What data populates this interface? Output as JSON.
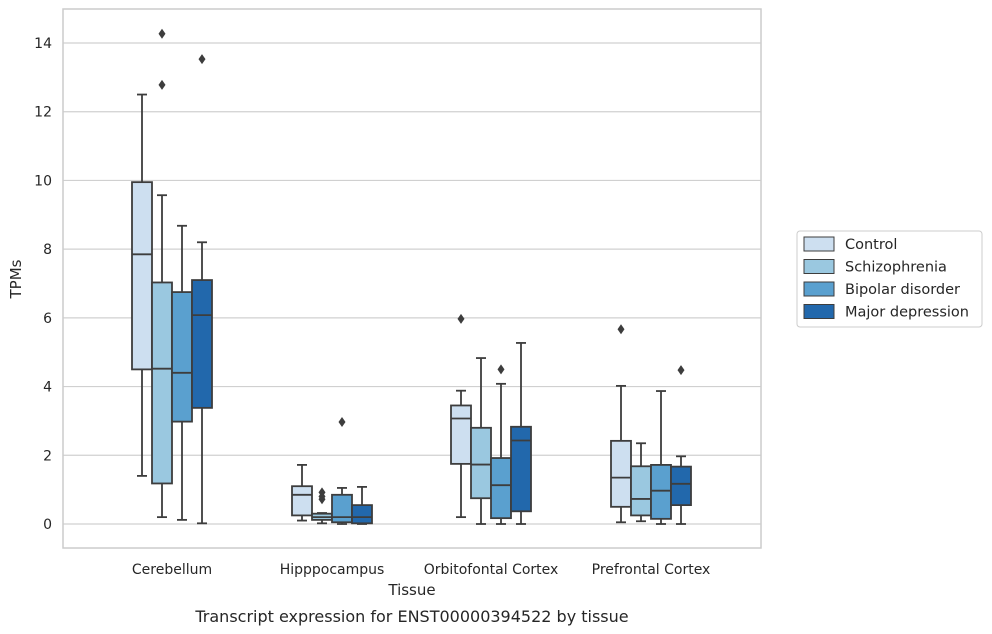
{
  "caption": "Transcript expression for ENST00000394522 by tissue",
  "chart_data": {
    "type": "box",
    "title": "",
    "xlabel": "Tissue",
    "ylabel": "TPMs",
    "ylim": [
      -0.7,
      15.0
    ],
    "yticks": [
      0,
      2,
      4,
      6,
      8,
      10,
      12,
      14
    ],
    "grid": "horizontal",
    "legend_position": "right",
    "categories": [
      "Cerebellum",
      "Hipppocampus",
      "Orbitofontal Cortex",
      "Prefrontal Cortex"
    ],
    "series": [
      {
        "name": "Control",
        "color": "#cddff0",
        "boxes": [
          {
            "whislo": 1.4,
            "q1": 4.5,
            "med": 7.85,
            "q3": 9.95,
            "whishi": 12.5,
            "fliers": []
          },
          {
            "whislo": 0.1,
            "q1": 0.25,
            "med": 0.85,
            "q3": 1.1,
            "whishi": 1.72,
            "fliers": []
          },
          {
            "whislo": 0.2,
            "q1": 1.75,
            "med": 3.07,
            "q3": 3.45,
            "whishi": 3.88,
            "fliers": [
              5.97
            ]
          },
          {
            "whislo": 0.05,
            "q1": 0.5,
            "med": 1.35,
            "q3": 2.42,
            "whishi": 4.02,
            "fliers": [
              5.67
            ]
          }
        ]
      },
      {
        "name": "Schizophrenia",
        "color": "#9ac8e0",
        "boxes": [
          {
            "whislo": 0.2,
            "q1": 1.18,
            "med": 4.52,
            "q3": 7.03,
            "whishi": 9.57,
            "fliers": [
              12.78,
              14.27
            ]
          },
          {
            "whislo": 0.02,
            "q1": 0.12,
            "med": 0.2,
            "q3": 0.3,
            "whishi": 0.32,
            "fliers": [
              0.72,
              0.8,
              0.92
            ]
          },
          {
            "whislo": 0.0,
            "q1": 0.75,
            "med": 1.73,
            "q3": 2.8,
            "whishi": 4.83,
            "fliers": []
          },
          {
            "whislo": 0.08,
            "q1": 0.25,
            "med": 0.73,
            "q3": 1.68,
            "whishi": 2.35,
            "fliers": []
          }
        ]
      },
      {
        "name": "Bipolar disorder",
        "color": "#5aa0cf",
        "boxes": [
          {
            "whislo": 0.12,
            "q1": 2.98,
            "med": 4.4,
            "q3": 6.75,
            "whishi": 8.68,
            "fliers": []
          },
          {
            "whislo": 0.0,
            "q1": 0.05,
            "med": 0.2,
            "q3": 0.85,
            "whishi": 1.05,
            "fliers": [
              2.97
            ]
          },
          {
            "whislo": 0.0,
            "q1": 0.17,
            "med": 1.13,
            "q3": 1.92,
            "whishi": 4.08,
            "fliers": [
              4.5
            ]
          },
          {
            "whislo": 0.0,
            "q1": 0.15,
            "med": 0.97,
            "q3": 1.72,
            "whishi": 3.87,
            "fliers": []
          }
        ]
      },
      {
        "name": "Major depression",
        "color": "#2268ac",
        "boxes": [
          {
            "whislo": 0.02,
            "q1": 3.38,
            "med": 6.08,
            "q3": 7.1,
            "whishi": 8.2,
            "fliers": [
              13.53
            ]
          },
          {
            "whislo": 0.0,
            "q1": 0.02,
            "med": 0.2,
            "q3": 0.55,
            "whishi": 1.08,
            "fliers": []
          },
          {
            "whislo": 0.0,
            "q1": 0.37,
            "med": 2.43,
            "q3": 2.83,
            "whishi": 5.27,
            "fliers": []
          },
          {
            "whislo": 0.0,
            "q1": 0.55,
            "med": 1.17,
            "q3": 1.67,
            "whishi": 1.97,
            "fliers": [
              4.48
            ]
          }
        ]
      }
    ]
  }
}
